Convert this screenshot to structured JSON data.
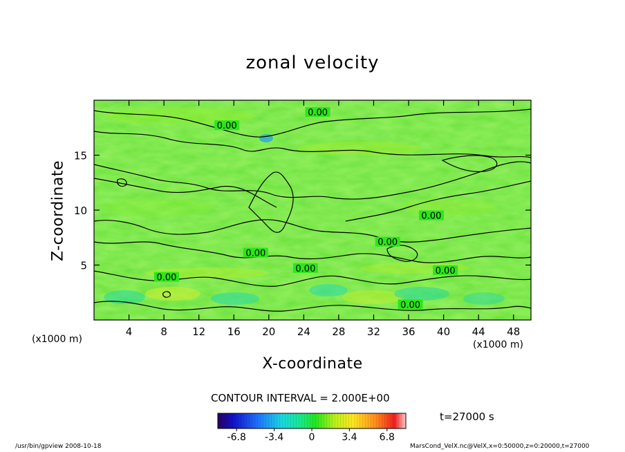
{
  "chart_data": {
    "type": "heatmap",
    "title": "zonal velocity",
    "xlabel": "X-coordinate",
    "ylabel": "Z-coordinate",
    "x_unit_label": "(x1000 m)",
    "z_unit_label": "(x1000 m)",
    "xlim": [
      0,
      50
    ],
    "ylim": [
      0,
      20
    ],
    "x_ticks": [
      4,
      8,
      12,
      16,
      20,
      24,
      28,
      32,
      36,
      40,
      44,
      48
    ],
    "y_ticks": [
      5,
      10,
      15
    ],
    "contour_interval_text": "CONTOUR INTERVAL = 2.000E+00",
    "contour_labels": [
      {
        "text": "0.00",
        "x": 25.6,
        "z": 18.8
      },
      {
        "text": "0.00",
        "x": 15.2,
        "z": 17.6
      },
      {
        "text": "0.00",
        "x": 38.6,
        "z": 9.4
      },
      {
        "text": "0.00",
        "x": 33.6,
        "z": 7.0
      },
      {
        "text": "0.00",
        "x": 18.5,
        "z": 6.0
      },
      {
        "text": "0.00",
        "x": 24.2,
        "z": 4.6
      },
      {
        "text": "0.00",
        "x": 40.2,
        "z": 4.4
      },
      {
        "text": "0.00",
        "x": 8.3,
        "z": 3.8
      },
      {
        "text": "0.00",
        "x": 36.2,
        "z": 1.3
      }
    ],
    "colorbar": {
      "tick_labels": [
        "-6.8",
        "-3.4",
        "0",
        "3.4",
        "6.8"
      ],
      "tick_values": [
        -6.8,
        -3.4,
        0,
        3.4,
        6.8
      ],
      "range": [
        -8.5,
        8.5
      ]
    },
    "time_label": "t=27000 s",
    "grid": false
  },
  "footer": {
    "left": "/usr/bin/gpview 2008-10-18",
    "right": "MarsCond_VelX.nc@VelX,x=0:50000,z=0:20000,t=27000"
  }
}
